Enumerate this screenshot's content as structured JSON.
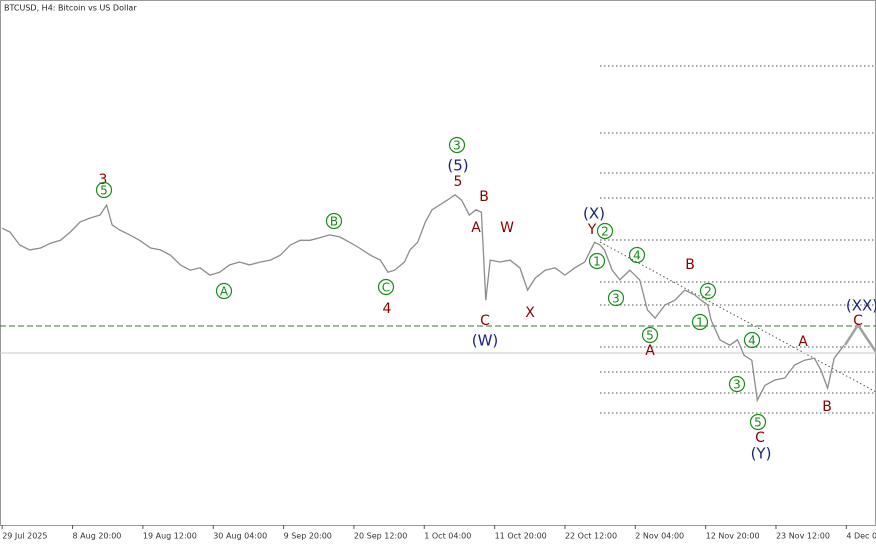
{
  "chart_data": {
    "type": "line",
    "title": "BTCUSD, H4:  Bitcoin vs US Dollar",
    "color": "#8c8c8c",
    "x": [
      0,
      7,
      16,
      25,
      35,
      44,
      53,
      62,
      71,
      80,
      89,
      95,
      100,
      107,
      116,
      125,
      135,
      144,
      153,
      162,
      171,
      180,
      189,
      198,
      207,
      216,
      225,
      235,
      244,
      253,
      262,
      271,
      280,
      289,
      298,
      307,
      316,
      325,
      335,
      344,
      351,
      357,
      366,
      371,
      378,
      385,
      391,
      398,
      405,
      412,
      418,
      425,
      431,
      436,
      440,
      444,
      453,
      462,
      471,
      478,
      485,
      494,
      503,
      512,
      521,
      530,
      539,
      544,
      548,
      555,
      562,
      571,
      580,
      587,
      594,
      603,
      612,
      621,
      630,
      636,
      642,
      645,
      653,
      662,
      669,
      675,
      682,
      687,
      694,
      703,
      712,
      721,
      730,
      739,
      745,
      751,
      757,
      766
    ],
    "values": [
      118100,
      117300,
      114600,
      113600,
      114000,
      115000,
      115600,
      117300,
      119400,
      120200,
      120800,
      122900,
      118800,
      117700,
      116700,
      115600,
      114000,
      113600,
      112500,
      110500,
      109400,
      109900,
      108400,
      109000,
      110500,
      111100,
      110500,
      111100,
      111500,
      112500,
      114600,
      115600,
      115600,
      116100,
      116700,
      116300,
      115200,
      114000,
      112500,
      111500,
      109000,
      109400,
      111100,
      113600,
      115200,
      119400,
      121900,
      122900,
      123900,
      125000,
      123900,
      120800,
      121900,
      121400,
      103200,
      111500,
      111100,
      111500,
      109900,
      105300,
      107800,
      109400,
      109900,
      108400,
      109900,
      111100,
      115200,
      114600,
      113600,
      109400,
      107400,
      109400,
      107400,
      101200,
      99500,
      102200,
      103200,
      105300,
      104300,
      103200,
      102200,
      99100,
      95000,
      93900,
      95000,
      91800,
      90800,
      82500,
      85600,
      86700,
      87100,
      89800,
      90800,
      91200,
      88700,
      85000,
      91200,
      93900
    ],
    "xlim": [
      -2,
      795
    ],
    "ylim": [
      56700,
      165300
    ],
    "xticks": [
      {
        "value": 0,
        "label": "29 Jul 2025"
      },
      {
        "value": 64,
        "label": "8 Aug 20:00"
      },
      {
        "value": 128,
        "label": "19 Aug 12:00"
      },
      {
        "value": 192,
        "label": "30 Aug 04:00"
      },
      {
        "value": 256,
        "label": "9 Sep 20:00"
      },
      {
        "value": 320,
        "label": "20 Sep 12:00"
      },
      {
        "value": 384,
        "label": "1 Oct 04:00"
      },
      {
        "value": 448,
        "label": "11 Oct 20:00"
      },
      {
        "value": 512,
        "label": "22 Oct 12:00"
      },
      {
        "value": 576,
        "label": "2 Nov 04:00"
      },
      {
        "value": 640,
        "label": "12 Nov 20:00"
      },
      {
        "value": 704,
        "label": "23 Nov 12:00"
      },
      {
        "value": 768,
        "label": "4 Dec 04:00"
      }
    ],
    "annotations": [
      "3",
      "5",
      "A",
      "B",
      "C",
      "4",
      "3",
      "(5)",
      "5",
      "B",
      "A",
      "W",
      "C",
      "(W)",
      "X",
      "(X)",
      "Y",
      "2",
      "1",
      "4",
      "3",
      "5",
      "A",
      "B",
      "2",
      "1",
      "4",
      "3",
      "5",
      "C",
      "(Y)",
      "A",
      "B",
      "(XX)",
      "C"
    ]
  }
}
